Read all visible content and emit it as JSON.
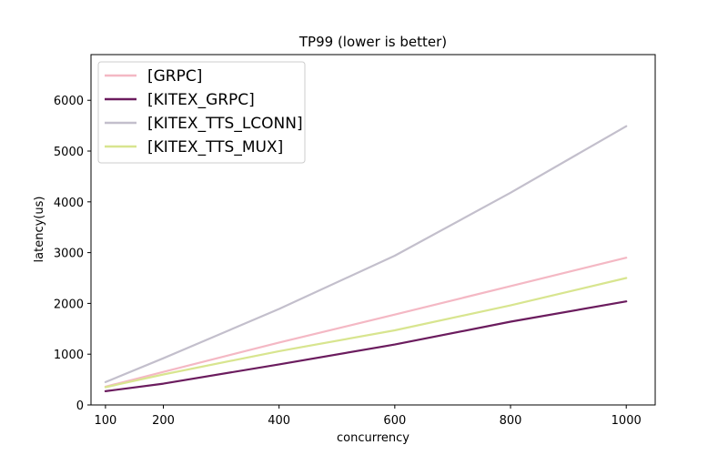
{
  "chart_data": {
    "type": "line",
    "title": "TP99 (lower is better)",
    "xlabel": "concurrency",
    "ylabel": "latency(us)",
    "x": [
      100,
      200,
      400,
      600,
      800,
      1000
    ],
    "xlim": [
      75,
      1050
    ],
    "ylim": [
      0,
      6900
    ],
    "xticks": [
      100,
      200,
      400,
      600,
      800,
      1000
    ],
    "yticks": [
      0,
      1000,
      2000,
      3000,
      4000,
      5000,
      6000
    ],
    "grid": false,
    "legend_position": "top-left",
    "series": [
      {
        "name": "[GRPC]",
        "color": "#f4b8c4",
        "values": [
          360,
          650,
          1230,
          1780,
          2340,
          2900
        ]
      },
      {
        "name": "[KITEX_GRPC]",
        "color": "#6b1c5e",
        "values": [
          270,
          420,
          800,
          1190,
          1640,
          2040
        ]
      },
      {
        "name": "[KITEX_TTS_LCONN]",
        "color": "#c3bfcc",
        "values": [
          450,
          920,
          1890,
          2940,
          4180,
          5490
        ]
      },
      {
        "name": "[KITEX_TTS_MUX]",
        "color": "#d8e58f",
        "values": [
          350,
          600,
          1060,
          1470,
          1960,
          2500
        ]
      }
    ]
  }
}
